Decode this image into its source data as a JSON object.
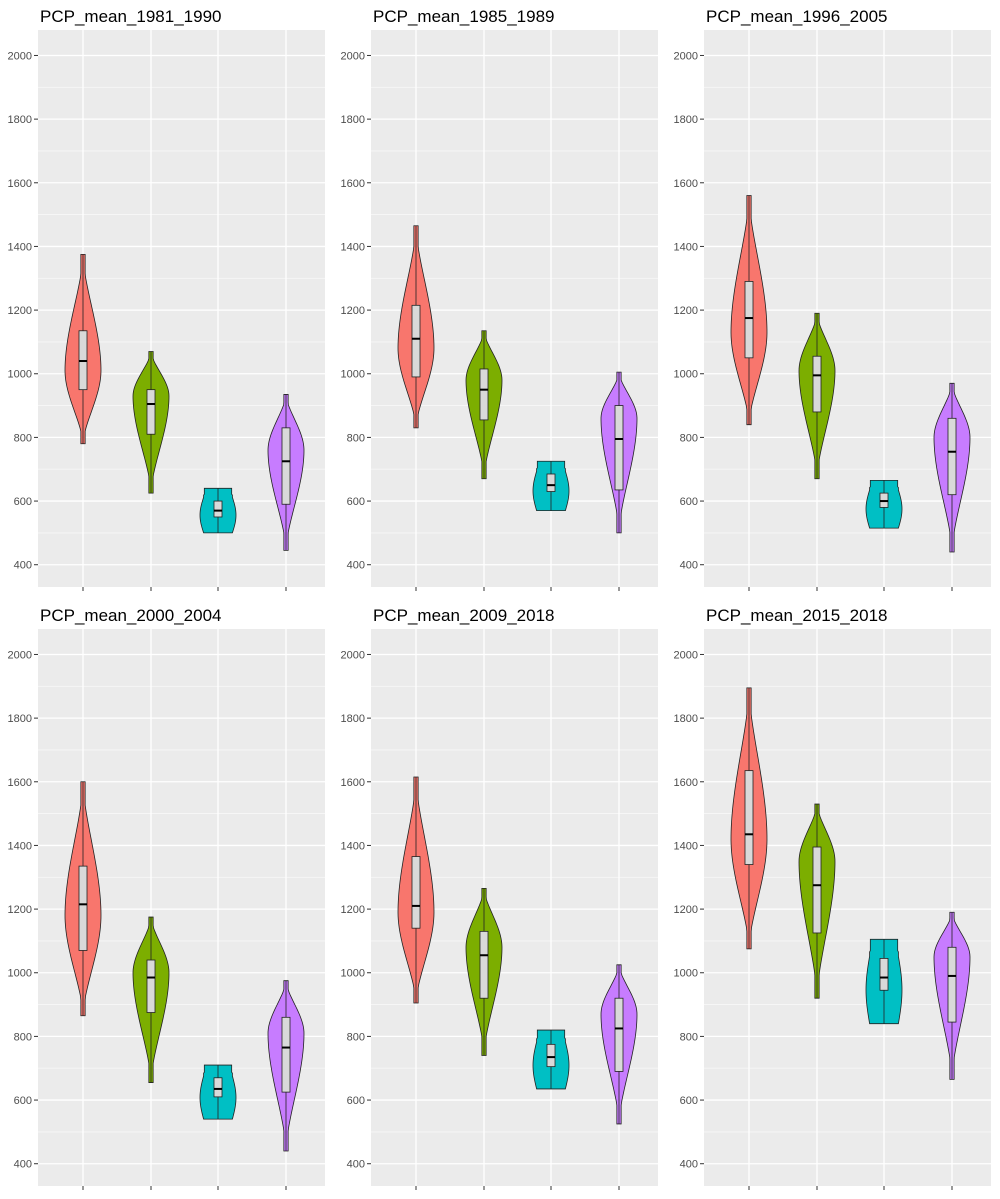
{
  "colors": {
    "panel_bg": "#EBEBEB",
    "grid_major": "#FFFFFF",
    "tick_text": "#4D4D4D",
    "box_fill": "#D9D9D9",
    "series": [
      "#F8766D",
      "#7CAE00",
      "#00BFC4",
      "#C77CFF"
    ]
  },
  "chart_data": [
    {
      "type": "violin",
      "title": "PCP_mean_1981_1990",
      "ylim": [
        330,
        2080
      ],
      "yticks": [
        400,
        600,
        800,
        1000,
        1200,
        1400,
        1600,
        1800,
        2000
      ],
      "x_tick_labels_visible": false,
      "grid": true,
      "groups": [
        {
          "min": 780,
          "q1": 950,
          "median": 1040,
          "q3": 1135,
          "max": 1375,
          "mode": 1010
        },
        {
          "min": 625,
          "q1": 810,
          "median": 905,
          "q3": 950,
          "max": 1070,
          "mode": 930
        },
        {
          "min": 500,
          "q1": 550,
          "median": 570,
          "q3": 600,
          "max": 640,
          "mode": 570,
          "shape": "flat"
        },
        {
          "min": 445,
          "q1": 590,
          "median": 725,
          "q3": 830,
          "max": 935,
          "mode": 760
        }
      ]
    },
    {
      "type": "violin",
      "title": "PCP_mean_1985_1989",
      "ylim": [
        330,
        2080
      ],
      "yticks": [
        400,
        600,
        800,
        1000,
        1200,
        1400,
        1600,
        1800,
        2000
      ],
      "x_tick_labels_visible": false,
      "grid": true,
      "groups": [
        {
          "min": 830,
          "q1": 990,
          "median": 1110,
          "q3": 1215,
          "max": 1465,
          "mode": 1080
        },
        {
          "min": 670,
          "q1": 855,
          "median": 950,
          "q3": 1015,
          "max": 1135,
          "mode": 980
        },
        {
          "min": 570,
          "q1": 630,
          "median": 650,
          "q3": 685,
          "max": 725,
          "mode": 650,
          "shape": "flat"
        },
        {
          "min": 500,
          "q1": 635,
          "median": 795,
          "q3": 900,
          "max": 1005,
          "mode": 860
        }
      ]
    },
    {
      "type": "violin",
      "title": "PCP_mean_1996_2005",
      "ylim": [
        330,
        2080
      ],
      "yticks": [
        400,
        600,
        800,
        1000,
        1200,
        1400,
        1600,
        1800,
        2000
      ],
      "x_tick_labels_visible": false,
      "grid": true,
      "groups": [
        {
          "min": 840,
          "q1": 1050,
          "median": 1175,
          "q3": 1290,
          "max": 1560,
          "mode": 1130
        },
        {
          "min": 670,
          "q1": 880,
          "median": 995,
          "q3": 1055,
          "max": 1190,
          "mode": 1010
        },
        {
          "min": 515,
          "q1": 580,
          "median": 600,
          "q3": 625,
          "max": 665,
          "mode": 600,
          "shape": "flat"
        },
        {
          "min": 440,
          "q1": 620,
          "median": 755,
          "q3": 860,
          "max": 970,
          "mode": 800
        }
      ]
    },
    {
      "type": "violin",
      "title": "PCP_mean_2000_2004",
      "ylim": [
        330,
        2080
      ],
      "yticks": [
        400,
        600,
        800,
        1000,
        1200,
        1400,
        1600,
        1800,
        2000
      ],
      "x_tick_labels_visible": false,
      "grid": true,
      "groups": [
        {
          "min": 865,
          "q1": 1070,
          "median": 1215,
          "q3": 1335,
          "max": 1600,
          "mode": 1180
        },
        {
          "min": 655,
          "q1": 875,
          "median": 985,
          "q3": 1040,
          "max": 1175,
          "mode": 1000
        },
        {
          "min": 540,
          "q1": 610,
          "median": 635,
          "q3": 670,
          "max": 710,
          "mode": 640,
          "shape": "flat"
        },
        {
          "min": 440,
          "q1": 625,
          "median": 765,
          "q3": 860,
          "max": 975,
          "mode": 810
        }
      ]
    },
    {
      "type": "violin",
      "title": "PCP_mean_2009_2018",
      "ylim": [
        330,
        2080
      ],
      "yticks": [
        400,
        600,
        800,
        1000,
        1200,
        1400,
        1600,
        1800,
        2000
      ],
      "x_tick_labels_visible": false,
      "grid": true,
      "groups": [
        {
          "min": 905,
          "q1": 1140,
          "median": 1210,
          "q3": 1365,
          "max": 1615,
          "mode": 1190
        },
        {
          "min": 740,
          "q1": 920,
          "median": 1055,
          "q3": 1130,
          "max": 1265,
          "mode": 1080
        },
        {
          "min": 635,
          "q1": 705,
          "median": 735,
          "q3": 775,
          "max": 820,
          "mode": 740,
          "shape": "flat"
        },
        {
          "min": 525,
          "q1": 690,
          "median": 825,
          "q3": 920,
          "max": 1025,
          "mode": 870
        }
      ]
    },
    {
      "type": "violin",
      "title": "PCP_mean_2015_2018",
      "ylim": [
        330,
        2080
      ],
      "yticks": [
        400,
        600,
        800,
        1000,
        1200,
        1400,
        1600,
        1800,
        2000
      ],
      "x_tick_labels_visible": false,
      "grid": true,
      "groups": [
        {
          "min": 1075,
          "q1": 1340,
          "median": 1435,
          "q3": 1635,
          "max": 1895,
          "mode": 1420
        },
        {
          "min": 920,
          "q1": 1125,
          "median": 1275,
          "q3": 1395,
          "max": 1530,
          "mode": 1350
        },
        {
          "min": 840,
          "q1": 945,
          "median": 985,
          "q3": 1045,
          "max": 1105,
          "mode": 1000,
          "shape": "flat"
        },
        {
          "min": 665,
          "q1": 845,
          "median": 990,
          "q3": 1080,
          "max": 1190,
          "mode": 1050
        }
      ]
    }
  ]
}
